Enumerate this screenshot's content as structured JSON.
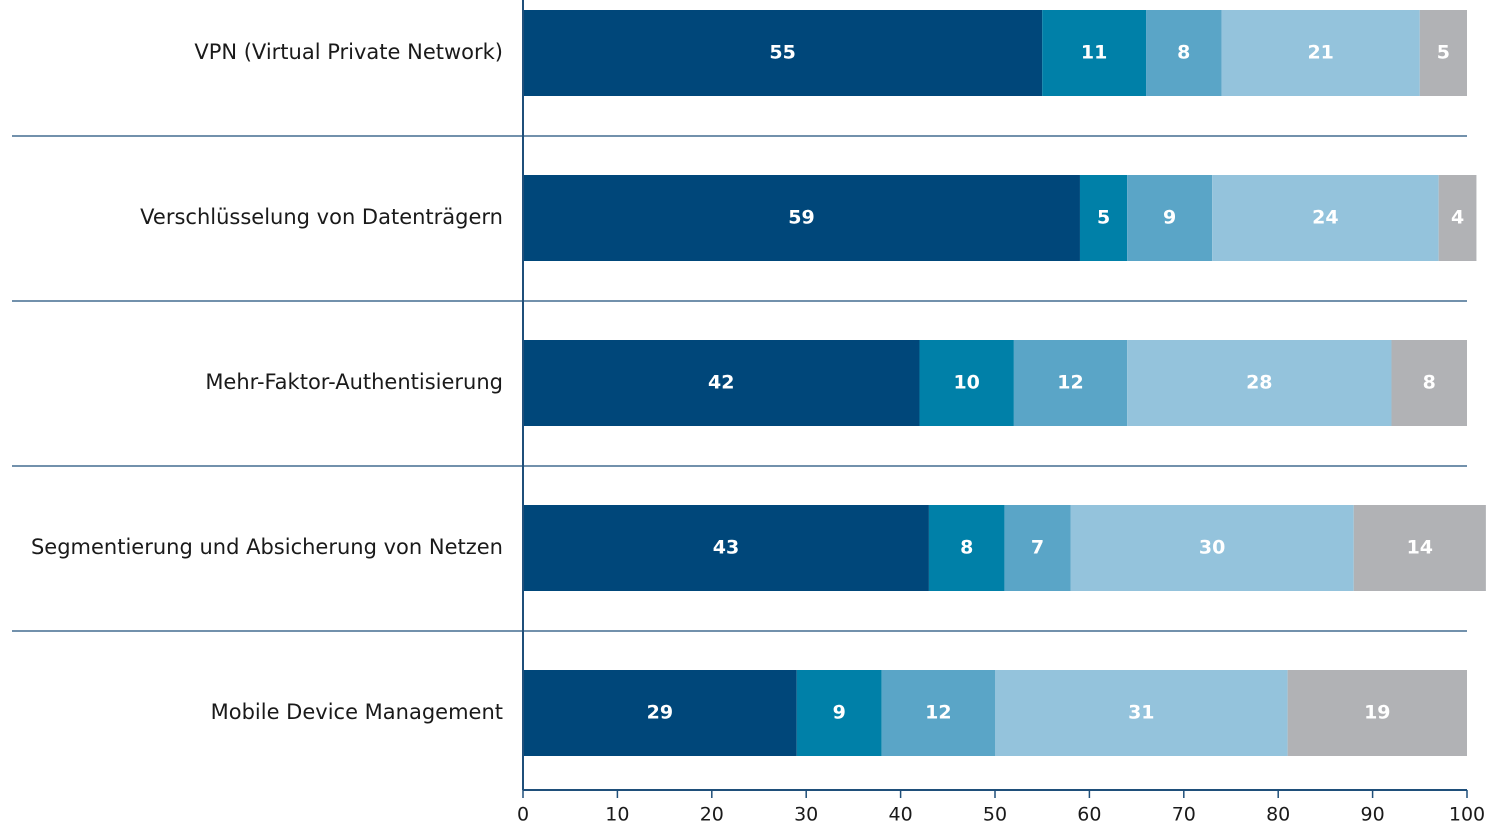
{
  "chart_data": {
    "type": "stacked_barh",
    "categories": [
      "VPN (Virtual Private Network)",
      "Verschlüsselung von Datenträgern",
      "Mehr-Faktor-Authentisierung",
      "Segmentierung und Absicherung von Netzen",
      "Mobile Device Management"
    ],
    "series": [
      {
        "color": "#00477a",
        "values": [
          55,
          59,
          42,
          43,
          29
        ]
      },
      {
        "color": "#0080a8",
        "values": [
          11,
          5,
          10,
          8,
          9
        ]
      },
      {
        "color": "#5aa5c7",
        "values": [
          8,
          9,
          12,
          7,
          12
        ]
      },
      {
        "color": "#94c3dc",
        "values": [
          21,
          24,
          28,
          30,
          31
        ]
      },
      {
        "color": "#b1b2b5",
        "values": [
          5,
          4,
          8,
          14,
          19
        ]
      }
    ],
    "xlim": [
      0,
      100
    ],
    "xticks": [
      0,
      10,
      20,
      30,
      40,
      50,
      60,
      70,
      80,
      90,
      100
    ]
  }
}
